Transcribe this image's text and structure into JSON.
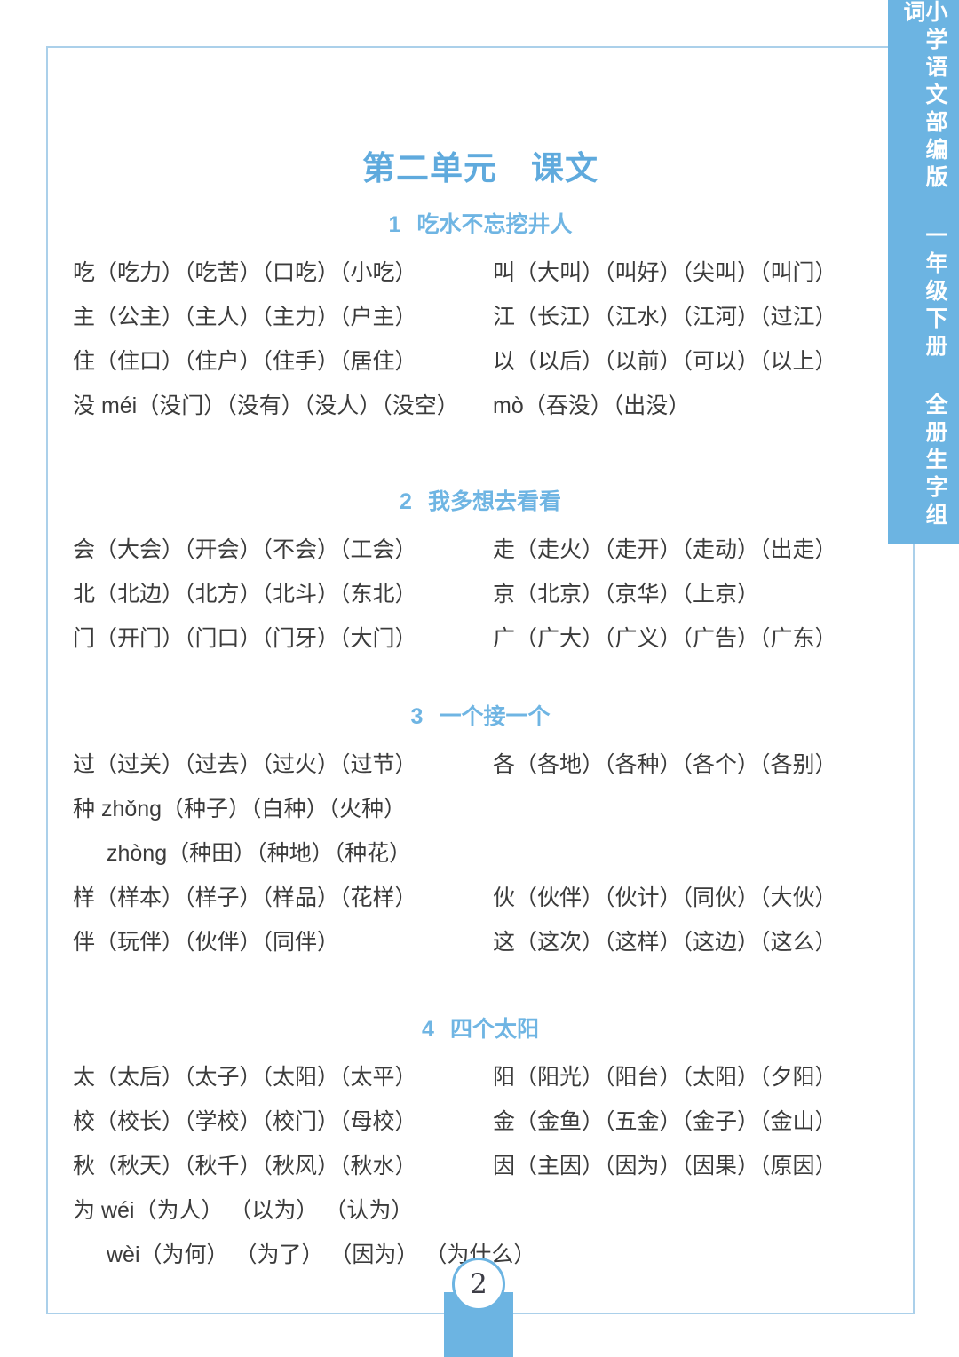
{
  "title": "第二单元　课文",
  "sidebar": {
    "segments": [
      "小学语文部编版",
      "一年级下册",
      "全册生字组词"
    ]
  },
  "footer": {
    "page_number": "2"
  },
  "colors": {
    "accent_blue": "#6cb4e2",
    "title_blue": "#5faadd",
    "heading_blue": "#6fb5e3",
    "body_text": "#3b3b3b",
    "border": "#abd0ea"
  },
  "sections": [
    {
      "num": "1",
      "heading": "吃水不忘挖井人",
      "rows": [
        {
          "left": "吃（吃力）（吃苦）（口吃）（小吃）",
          "right": "叫（大叫）（叫好）（尖叫）（叫门）"
        },
        {
          "left": "主（公主）（主人）（主力）（户主）",
          "right": "江（长江）（江水）（江河）（过江）"
        },
        {
          "left": "住（住口）（住户）（住手）（居住）",
          "right": "以（以后）（以前）（可以）（以上）"
        },
        {
          "left": "没 méi（没门）（没有）（没人）（没空）",
          "right": "mò（吞没）（出没）"
        }
      ]
    },
    {
      "num": "2",
      "heading": "我多想去看看",
      "rows": [
        {
          "left": "会（大会）（开会）（不会）（工会）",
          "right": "走（走火）（走开）（走动）（出走）"
        },
        {
          "left": "北（北边）（北方）（北斗）（东北）",
          "right": "京（北京）（京华）（上京）"
        },
        {
          "left": "门（开门）（门口）（门牙）（大门）",
          "right": "广（广大）（广义）（广告）（广东）"
        }
      ]
    },
    {
      "num": "3",
      "heading": "一个接一个",
      "rows": [
        {
          "left": "过（过关）（过去）（过火）（过节）",
          "right": "各（各地）（各种）（各个）（各别）"
        },
        {
          "left": "种 zhǒng（种子）（白种）（火种）",
          "right": ""
        },
        {
          "left": "zhòng（种田）（种地）（种花）",
          "right": "",
          "indent": true
        },
        {
          "left": "样（样本）（样子）（样品）（花样）",
          "right": "伙（伙伴）（伙计）（同伙）（大伙）"
        },
        {
          "left": "伴（玩伴）（伙伴）（同伴）",
          "right": "这（这次）（这样）（这边）（这么）"
        }
      ]
    },
    {
      "num": "4",
      "heading": "四个太阳",
      "rows": [
        {
          "left": "太（太后）（太子）（太阳）（太平）",
          "right": "阳（阳光）（阳台）（太阳）（夕阳）"
        },
        {
          "left": "校（校长）（学校）（校门）（母校）",
          "right": "金（金鱼）（五金）（金子）（金山）"
        },
        {
          "left": "秋（秋天）（秋千）（秋风）（秋水）",
          "right": "因（主因）（因为）（因果）（原因）"
        },
        {
          "left": "为  wéi（为人） （以为） （认为）",
          "right": ""
        },
        {
          "left": "wèi（为何） （为了） （因为） （为什么）",
          "right": "",
          "indent": true
        }
      ]
    }
  ]
}
